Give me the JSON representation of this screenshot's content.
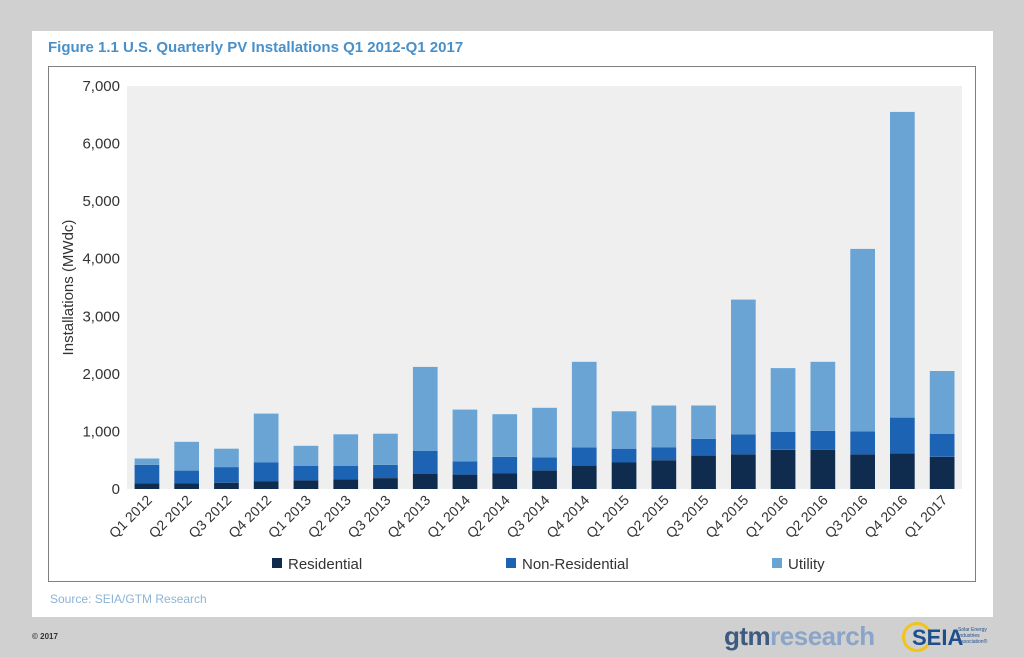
{
  "figure_title": "Figure 1.1  U.S. Quarterly PV Installations Q1 2012-Q1 2017",
  "source": "Source: SEIA/GTM Research",
  "copyright": "© 2017",
  "logos": {
    "gtm_part1": "gtm",
    "gtm_part2": "research",
    "seia": "SEIA",
    "seia_sub": "Solar Energy Industries Association®"
  },
  "colors": {
    "residential": "#0f2b4e",
    "non_residential": "#1d63b4",
    "utility": "#6aa4d5",
    "title": "#4a90c8"
  },
  "chart_data": {
    "type": "bar",
    "stacked": true,
    "title": "",
    "xlabel": "",
    "ylabel": "Installations (MWdc)",
    "ylim": [
      0,
      7000
    ],
    "yticks": [
      "0",
      "1,000",
      "2,000",
      "3,000",
      "4,000",
      "5,000",
      "6,000",
      "7,000"
    ],
    "grid": false,
    "legend_position": "bottom",
    "categories": [
      "Q1 2012",
      "Q2 2012",
      "Q3 2012",
      "Q4 2012",
      "Q1 2013",
      "Q2 2013",
      "Q3 2013",
      "Q4 2013",
      "Q1 2014",
      "Q2 2014",
      "Q3 2014",
      "Q4 2014",
      "Q1 2015",
      "Q2 2015",
      "Q3 2015",
      "Q4 2015",
      "Q1 2016",
      "Q2 2016",
      "Q3 2016",
      "Q4 2016",
      "Q1 2017"
    ],
    "series": [
      {
        "name": "Residential",
        "color": "#0f2b4e",
        "values": [
          100,
          100,
          110,
          130,
          150,
          170,
          190,
          260,
          250,
          270,
          320,
          410,
          460,
          500,
          580,
          600,
          680,
          680,
          600,
          620,
          560
        ]
      },
      {
        "name": "Non-Residential",
        "color": "#1d63b4",
        "values": [
          320,
          220,
          270,
          330,
          250,
          230,
          230,
          400,
          230,
          290,
          230,
          310,
          240,
          220,
          290,
          350,
          310,
          330,
          400,
          620,
          400
        ]
      },
      {
        "name": "Utility",
        "color": "#6aa4d5",
        "values": [
          110,
          500,
          320,
          850,
          350,
          550,
          540,
          1460,
          900,
          740,
          860,
          1490,
          650,
          730,
          580,
          2340,
          1110,
          1200,
          3170,
          5310,
          1090
        ]
      }
    ]
  }
}
